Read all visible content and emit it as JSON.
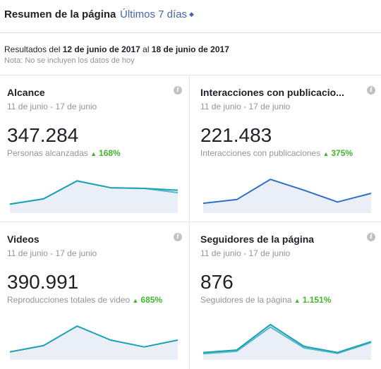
{
  "header": {
    "title": "Resumen de la página",
    "range_label": "Últimos 7 días"
  },
  "summary": {
    "results_prefix": "Resultados",
    "results_del": "del",
    "start_date": "12 de junio de 2017",
    "results_al": "al",
    "end_date": "18 de junio de 2017",
    "note": "Nota: No se incluyen los datos de hoy"
  },
  "colors": {
    "link": "#4267b2",
    "positive": "#42b72a",
    "teal": "#1ba3b4",
    "blue": "#2f6fc6",
    "fill": "#e9eef7"
  },
  "cards": [
    {
      "title": "Alcance",
      "period": "11 de junio - 17 de junio",
      "value": "347.284",
      "desc": "Personas alcanzadas",
      "change": "168%",
      "icon": "info-icon",
      "trend": [
        0.15,
        0.32,
        0.9,
        0.68,
        0.66,
        0.6
      ],
      "trend2": [
        0.15,
        0.32,
        0.9,
        0.68,
        0.66,
        0.52
      ],
      "color": "#1ba3b4"
    },
    {
      "title": "Interacciones con publicacio...",
      "period": "11 de junio - 17 de junio",
      "value": "221.483",
      "desc": "Interacciones con publicaciones",
      "change": "375%",
      "icon": "info-icon",
      "trend": [
        0.18,
        0.3,
        0.95,
        0.6,
        0.22,
        0.5
      ],
      "color": "#2f6fc6"
    },
    {
      "title": "Videos",
      "period": "11 de junio - 17 de junio",
      "value": "390.991",
      "desc": "Reproducciones totales de video",
      "change": "685%",
      "icon": "info-icon",
      "trend": [
        0.12,
        0.32,
        0.95,
        0.5,
        0.28,
        0.5
      ],
      "color": "#1ba3b4"
    },
    {
      "title": "Seguidores de la página",
      "period": "11 de junio - 17 de junio",
      "value": "876",
      "desc": "Seguidores de la página",
      "change": "1.151%",
      "icon": "info-icon",
      "trend": [
        0.1,
        0.18,
        1.0,
        0.3,
        0.1,
        0.45
      ],
      "trend2": [
        0.06,
        0.14,
        0.92,
        0.25,
        0.07,
        0.42
      ],
      "color": "#1ba3b4"
    }
  ]
}
